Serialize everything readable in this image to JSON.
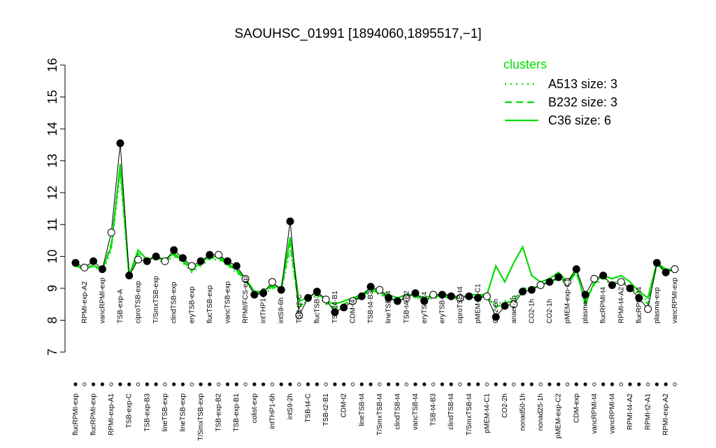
{
  "chart_data": {
    "type": "line",
    "title": "SAOUHSC_01991 [1894060,1895517,−1]",
    "categories": [
      "flucRPMI-exp",
      "RPMI-exp-A2",
      "flucRPMI-exp",
      "vancRPMI-exp",
      "RPMI-exp-A1",
      "TSB-exp-A",
      "TSB-exp-C",
      "ciproTSB-exp",
      "TSB-exp-B3",
      "T/SmxTSB-exp",
      "lineTSB-exp",
      "clindTSB-exp",
      "lineTSB-exp",
      "eryTSB-exp",
      "T/SmxTSB-exp",
      "flucTSB-exp",
      "TSB-exp-B2",
      "vancTSB-exp",
      "TSB-exp-B1",
      "RPMI/FCS-exp",
      "colist-exp",
      "intTHP1-2h",
      "intTHP1-6h",
      "intS9-6h",
      "intS9-2h",
      "TSB-t2-C",
      "TSB-t4-C",
      "flucTSB-t4",
      "TSB-t2-B1",
      "TSB-t4-B1",
      "CDM-t2",
      "CDM-t4",
      "lineTSB-t4",
      "TSB-t4-B3",
      "T/SmxTSB-t4",
      "lineTSB-t4",
      "clindTSB-t4",
      "TSB-t4-B2",
      "vancTSB-t4",
      "eryTSB-t4",
      "TSB-t4-B3",
      "eryTSB-t4",
      "clindTSB-t4",
      "ciproTSB-t4",
      "T/SmxTSB-t4",
      "pMEM-t2-C1",
      "pMEM-t4-C1",
      "CO2-6h",
      "CO2-2h",
      "anaer-2h",
      "nonad50-1h",
      "CO2-1h",
      "nonad25-1h",
      "CO2-1h",
      "pMEM-exp-C2",
      "pMEM-exp-C1",
      "CDM-exp",
      "plasma-t4",
      "vancRPMI-t4",
      "flucRPMI-t4",
      "vancRPMI-t4",
      "RPMI-t4-A2",
      "RPMI-t4-A2",
      "flucRPMI-t4",
      "RPMI-t2-A1",
      "plasma-exp",
      "RPMI-exp-A2",
      "vancRPMI-exp"
    ],
    "values": [
      9.8,
      9.65,
      9.85,
      9.6,
      10.75,
      13.55,
      9.4,
      9.9,
      9.85,
      10.0,
      9.85,
      10.2,
      9.95,
      9.7,
      9.85,
      10.05,
      10.05,
      9.85,
      9.7,
      9.3,
      8.8,
      8.85,
      9.2,
      8.95,
      11.1,
      8.15,
      8.7,
      8.9,
      8.65,
      8.25,
      8.4,
      8.6,
      8.75,
      9.05,
      8.95,
      8.7,
      8.6,
      8.7,
      8.85,
      8.6,
      8.8,
      8.8,
      8.75,
      8.7,
      8.75,
      8.7,
      8.75,
      8.1,
      8.45,
      8.5,
      8.9,
      8.95,
      9.1,
      9.2,
      9.35,
      9.2,
      9.6,
      8.8,
      9.3,
      9.4,
      9.1,
      9.2,
      9.0,
      8.7,
      8.35,
      9.8,
      9.5,
      9.6
    ],
    "color": "#000000",
    "legend_title": "clusters",
    "series": [
      {
        "name": "A513 size: 3",
        "color": "#00dd00",
        "dash": "dotted",
        "values": [
          9.7,
          9.6,
          9.7,
          9.5,
          10.2,
          12.6,
          9.3,
          10.0,
          9.8,
          9.9,
          9.8,
          10.0,
          9.8,
          9.5,
          9.7,
          9.9,
          9.9,
          9.7,
          9.5,
          9.2,
          8.9,
          8.8,
          9.0,
          8.9,
          10.2,
          8.5,
          8.6,
          8.8,
          8.5,
          8.4,
          8.5,
          8.6,
          8.7,
          8.9,
          8.8,
          8.7,
          8.6,
          8.7,
          8.7,
          8.6,
          8.7,
          8.7,
          8.7,
          8.6,
          8.7,
          8.7,
          8.7,
          8.5,
          8.6,
          8.7,
          9.0,
          9.0,
          9.1,
          9.2,
          9.3,
          9.1,
          9.5,
          8.6,
          9.1,
          9.3,
          9.1,
          9.2,
          9.0,
          8.8,
          8.6,
          9.7,
          9.5,
          9.6
        ]
      },
      {
        "name": "B232 size: 3",
        "color": "#00dd00",
        "dash": "dashed",
        "values": [
          9.75,
          9.6,
          9.75,
          9.55,
          10.4,
          12.8,
          9.35,
          10.1,
          9.85,
          9.95,
          9.85,
          10.05,
          9.85,
          9.55,
          9.75,
          9.95,
          9.95,
          9.75,
          9.55,
          9.25,
          8.85,
          8.85,
          9.05,
          8.95,
          10.4,
          8.4,
          8.65,
          8.85,
          8.55,
          8.35,
          8.5,
          8.65,
          8.75,
          8.95,
          8.85,
          8.7,
          8.6,
          8.7,
          8.75,
          8.6,
          8.75,
          8.75,
          8.7,
          8.65,
          8.7,
          8.75,
          8.75,
          8.4,
          8.55,
          8.6,
          9.0,
          9.0,
          9.1,
          9.2,
          9.3,
          9.15,
          9.5,
          8.6,
          9.15,
          9.35,
          9.15,
          9.25,
          9.05,
          8.8,
          8.5,
          9.75,
          9.55,
          9.6
        ]
      },
      {
        "name": "C36 size: 6",
        "color": "#00dd00",
        "dash": "solid",
        "values": [
          9.7,
          9.6,
          9.7,
          9.6,
          10.3,
          12.9,
          9.4,
          10.2,
          9.9,
          10.0,
          9.9,
          10.1,
          9.9,
          9.6,
          9.8,
          10.0,
          10.0,
          9.8,
          9.6,
          9.3,
          8.9,
          8.9,
          9.1,
          9.0,
          10.6,
          8.6,
          8.7,
          8.9,
          8.6,
          8.5,
          8.6,
          8.7,
          8.8,
          9.0,
          8.9,
          8.8,
          8.7,
          8.8,
          8.8,
          8.7,
          8.8,
          8.8,
          8.8,
          8.7,
          8.8,
          8.8,
          8.8,
          9.7,
          9.2,
          9.8,
          10.3,
          9.4,
          9.2,
          9.3,
          9.5,
          9.2,
          9.6,
          8.5,
          9.2,
          9.4,
          9.3,
          9.4,
          9.2,
          8.9,
          8.7,
          9.8,
          9.6,
          9.6
        ]
      }
    ],
    "ylim": [
      7,
      16
    ],
    "yticks": [
      7,
      8,
      9,
      10,
      11,
      12,
      13,
      14,
      15,
      16
    ]
  }
}
